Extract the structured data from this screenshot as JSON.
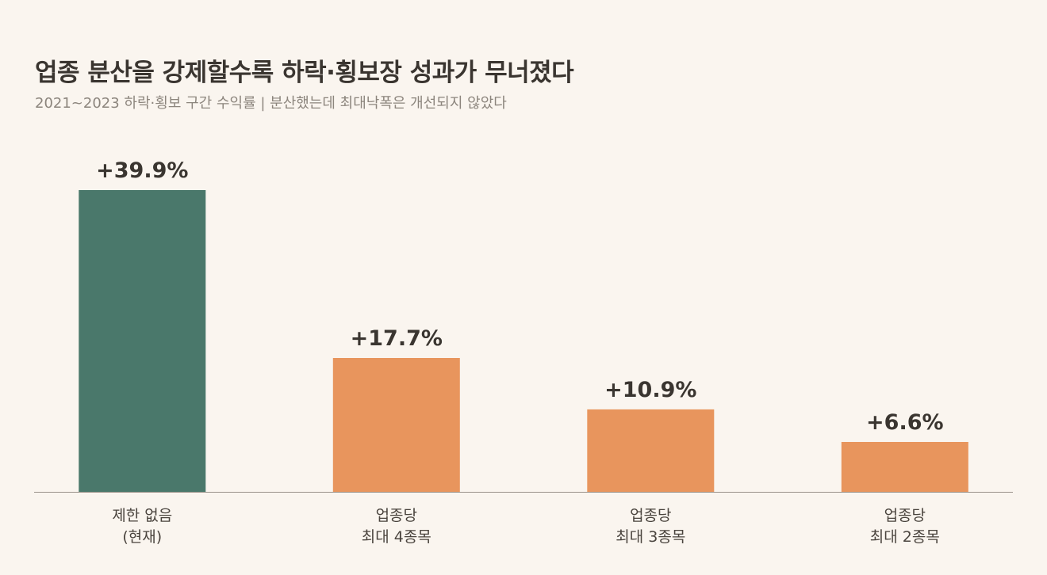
{
  "title": "업종 분산을 강제할수록 하락·횡보장 성과가 무너졌다",
  "subtitle": "2021~2023 하락·횡보 구간 수익률  |  분산했는데 최대낙폭은 개선되지 않았다",
  "colors": {
    "background": "#faf5ef",
    "highlight_bar": "#4a786b",
    "other_bar": "#e8955d",
    "value_label": "#3a3530",
    "axis_line": "#9a928a",
    "category_label": "#4a443e"
  },
  "chart_data": {
    "type": "bar",
    "categories": [
      [
        "제한 없음",
        "(현재)"
      ],
      [
        "업종당",
        "최대 4종목"
      ],
      [
        "업종당",
        "최대 3종목"
      ],
      [
        "업종당",
        "최대 2종목"
      ]
    ],
    "values": [
      39.9,
      17.7,
      10.9,
      6.6
    ],
    "value_labels": [
      "+39.9%",
      "+17.7%",
      "+10.9%",
      "+6.6%"
    ],
    "highlight_index": 0,
    "ylim": [
      0,
      39.9
    ],
    "grid": false,
    "xlabel": "",
    "ylabel": ""
  }
}
